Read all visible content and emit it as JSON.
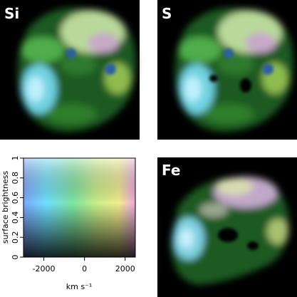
{
  "panels": [
    {
      "label": "Si"
    },
    {
      "label": "S"
    },
    {
      "label": "Fe"
    }
  ],
  "chart_data": {
    "type": "colorkey",
    "xlabel": "km s⁻¹",
    "ylabel": "surface brightness",
    "xlim": [
      -3000,
      2500
    ],
    "xticks": [
      -2000,
      0,
      2000
    ],
    "ylim": [
      0,
      1
    ],
    "yticks": [
      0,
      0.2,
      0.4,
      0.6,
      0.8,
      1
    ]
  }
}
